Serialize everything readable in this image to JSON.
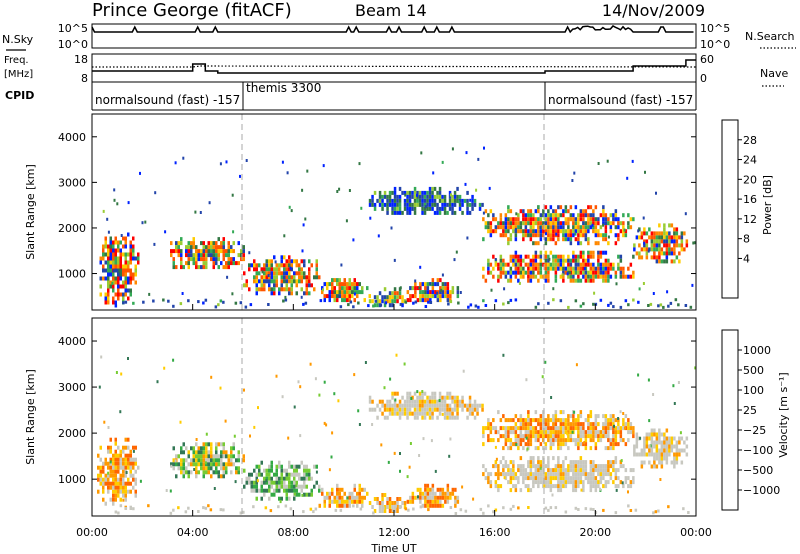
{
  "header": {
    "station": "Prince George (fitACF)",
    "beam": "Beam 14",
    "date": "14/Nov/2009"
  },
  "noise_panel": {
    "left_label": "N.Sky",
    "right_label": "N.Search",
    "left_ticks": [
      "10^5",
      "10^0"
    ],
    "right_ticks": [
      "10^5",
      "10^0"
    ]
  },
  "freq_panel": {
    "left_label_1": "Freq.",
    "left_label_2": "[MHz]",
    "right_label": "Nave",
    "left_ticks": [
      "18",
      "8"
    ],
    "right_ticks": [
      "60",
      "0"
    ]
  },
  "cpid_panel": {
    "label": "CPID",
    "programs": [
      {
        "name": "normalsound (fast) -157",
        "start_hour": 0
      },
      {
        "name": "themis 3300",
        "start_hour": 6
      },
      {
        "name": "normalsound (fast) -157",
        "start_hour": 18
      }
    ]
  },
  "power_colorbar": {
    "label": "Power [dB]",
    "ticks": [
      "28",
      "24",
      "20",
      "16",
      "12",
      "8",
      "4"
    ],
    "colors": [
      "#ff0000",
      "#ff5500",
      "#ff8800",
      "#ffcc00",
      "#99cc33",
      "#33aa55",
      "#337744",
      "#2244aa",
      "#0022ff"
    ]
  },
  "velocity_colorbar": {
    "label": "Velocity [m s⁻¹]",
    "ticks": [
      "1000",
      "500",
      "100",
      "25",
      "−25",
      "−100",
      "−500",
      "−1000"
    ],
    "colors": [
      "#2233bb",
      "#337755",
      "#33aa44",
      "#77cc33",
      "#c8c8c0",
      "#ffcc00",
      "#ff9900",
      "#ff6600",
      "#ff0000"
    ]
  },
  "chart_data": {
    "type": "heatmap",
    "ylabel": "Slant Range [km]",
    "xlabel": "Time UT",
    "xlim": [
      0,
      24
    ],
    "ylim": [
      200,
      4500
    ],
    "x_tick_labels": [
      "00:00",
      "04:00",
      "08:00",
      "12:00",
      "16:00",
      "20:00",
      "00:00"
    ],
    "y_tick_labels": [
      "1000",
      "2000",
      "3000",
      "4000"
    ],
    "y_tick_values": [
      1000,
      2000,
      3000,
      4000
    ],
    "panels": [
      "power",
      "velocity"
    ],
    "echo_regions": [
      {
        "t0": 0.2,
        "t1": 1.8,
        "r0": 400,
        "r1": 1900,
        "power": "high",
        "velocity": "negative"
      },
      {
        "t0": 3.0,
        "t1": 6.0,
        "r0": 1100,
        "r1": 1800,
        "power": "high",
        "velocity": "mixed"
      },
      {
        "t0": 6.0,
        "t1": 9.0,
        "r0": 600,
        "r1": 1400,
        "power": "high",
        "velocity": "positive"
      },
      {
        "t0": 9.0,
        "t1": 11.0,
        "r0": 400,
        "r1": 900,
        "power": "high",
        "velocity": "negative"
      },
      {
        "t0": 11.0,
        "t1": 12.5,
        "r0": 300,
        "r1": 700,
        "power": "medium",
        "velocity": "negative"
      },
      {
        "t0": 12.5,
        "t1": 14.5,
        "r0": 400,
        "r1": 900,
        "power": "high",
        "velocity": "negative"
      },
      {
        "t0": 11.0,
        "t1": 15.5,
        "r0": 2300,
        "r1": 2900,
        "power": "low",
        "velocity": "near-zero"
      },
      {
        "t0": 15.5,
        "t1": 21.5,
        "r0": 1700,
        "r1": 2500,
        "power": "high",
        "velocity": "negative"
      },
      {
        "t0": 15.5,
        "t1": 21.5,
        "r0": 800,
        "r1": 1500,
        "power": "high",
        "velocity": "near-zero"
      },
      {
        "t0": 21.5,
        "t1": 23.6,
        "r0": 1300,
        "r1": 2100,
        "power": "high",
        "velocity": "near-zero"
      }
    ]
  }
}
